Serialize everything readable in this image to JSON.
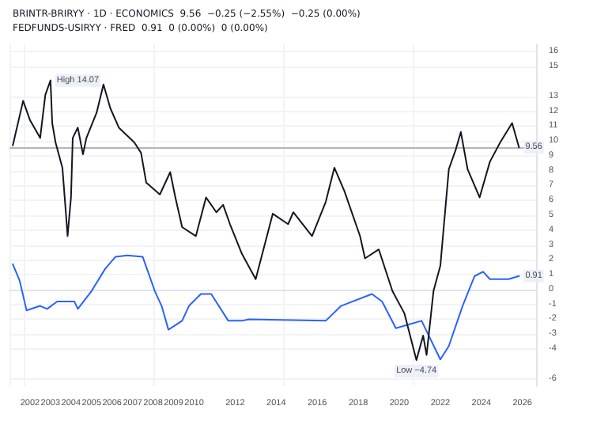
{
  "chart_data": {
    "type": "line",
    "annotations": [
      "BRINTR-BRIRYY · 1D · ECONOMICS  9.56  −0.25 (−2.55%)  −0.25 (0.00%)",
      "FEDFUNDS-USIRYY · FRED  0.91  0 (0.00%)  0 (0.00%)",
      {
        "text": "High 14.07",
        "x": "2003-01",
        "y": 14.07
      },
      {
        "text": "Low −4.74",
        "x": "2020-11",
        "y": -4.74
      },
      {
        "text": "9.56",
        "x": "2025-11",
        "y": 9.56
      },
      {
        "text": "0.91",
        "x": "2025-11",
        "y": 0.91
      }
    ],
    "series": [
      {
        "color": "#131722",
        "x": [
          "2001-03",
          "2001-09",
          "2002-01",
          "2002-07",
          "2002-10",
          "2003-01",
          "2003-02",
          "2003-04",
          "2003-08",
          "2003-10",
          "2003-11",
          "2004-01",
          "2004-02",
          "2004-05",
          "2004-08",
          "2004-10",
          "2005-04",
          "2005-08",
          "2005-12",
          "2006-05",
          "2007-02",
          "2007-06",
          "2007-09",
          "2008-05",
          "2008-11",
          "2009-02",
          "2009-06",
          "2010-02",
          "2010-08",
          "2011-02",
          "2011-06",
          "2011-10",
          "2012-05",
          "2013-01",
          "2013-11",
          "2014-08",
          "2014-11",
          "2015-10",
          "2016-06",
          "2016-11",
          "2017-05",
          "2018-02",
          "2018-05",
          "2019-01",
          "2019-09",
          "2020-04",
          "2020-11",
          "2021-03",
          "2021-05",
          "2021-09",
          "2022-01",
          "2022-06",
          "2022-10",
          "2023-01",
          "2023-05",
          "2023-12",
          "2024-06",
          "2024-12",
          "2025-07",
          "2025-11"
        ],
        "values": [
          9.7,
          12.7,
          11.4,
          10.2,
          13.1,
          14.07,
          11.2,
          9.9,
          8.2,
          5.2,
          3.6,
          6.2,
          10.2,
          10.9,
          9.1,
          10.2,
          11.9,
          13.8,
          12.2,
          10.9,
          9.9,
          9.2,
          7.2,
          6.4,
          7.9,
          6.2,
          4.2,
          3.6,
          6.2,
          5.2,
          5.7,
          4.4,
          2.4,
          0.7,
          5.1,
          4.4,
          5.2,
          3.6,
          5.9,
          8.2,
          6.6,
          3.6,
          2.1,
          2.7,
          -0.1,
          -1.6,
          -4.74,
          -3.1,
          -4.4,
          -0.1,
          1.6,
          8.1,
          9.4,
          10.6,
          8.1,
          6.2,
          8.6,
          9.9,
          11.2,
          9.56
        ]
      },
      {
        "color": "#2962ff",
        "x": [
          "2001-03",
          "2001-07",
          "2001-11",
          "2002-07",
          "2002-11",
          "2003-05",
          "2004-03",
          "2004-05",
          "2005-01",
          "2005-09",
          "2006-03",
          "2006-10",
          "2007-07",
          "2008-02",
          "2008-06",
          "2008-10",
          "2009-06",
          "2009-10",
          "2010-05",
          "2010-11",
          "2011-09",
          "2012-05",
          "2012-09",
          "2016-06",
          "2017-03",
          "2018-09",
          "2019-03",
          "2019-11",
          "2021-02",
          "2022-01",
          "2022-06",
          "2023-02",
          "2023-09",
          "2024-02",
          "2024-06",
          "2025-05",
          "2025-11"
        ],
        "values": [
          1.7,
          0.6,
          -1.4,
          -1.1,
          -1.3,
          -0.8,
          -0.8,
          -1.3,
          -0.1,
          1.4,
          2.2,
          2.3,
          2.2,
          -0.1,
          -1.1,
          -2.7,
          -2.1,
          -1.1,
          -0.3,
          -0.3,
          -2.1,
          -2.1,
          -2.0,
          -2.1,
          -1.1,
          -0.3,
          -0.8,
          -2.6,
          -2.1,
          -4.7,
          -3.8,
          -1.1,
          0.9,
          1.2,
          0.7,
          0.7,
          0.91
        ]
      }
    ],
    "xlim": [
      "2001-01",
      "2026-09"
    ],
    "xticks": [
      "2002",
      "2003",
      "2004",
      "2005",
      "2006",
      "2007",
      "2008",
      "2009",
      "2010",
      "2012",
      "2014",
      "2016",
      "2018",
      "2020",
      "2022",
      "2024",
      "2026"
    ],
    "ylim": [
      -6.5,
      16.5
    ],
    "yticks": [
      -6,
      -4,
      -3,
      -2,
      -1,
      0,
      1,
      2,
      3,
      4,
      5,
      6,
      7,
      8,
      9,
      10,
      11,
      12,
      13,
      15,
      16
    ],
    "ref_lines": [
      {
        "axis": "y",
        "value": 9.56,
        "color": "#b2b5be"
      }
    ],
    "grid": true,
    "marker": "none",
    "line_style": "solid"
  }
}
